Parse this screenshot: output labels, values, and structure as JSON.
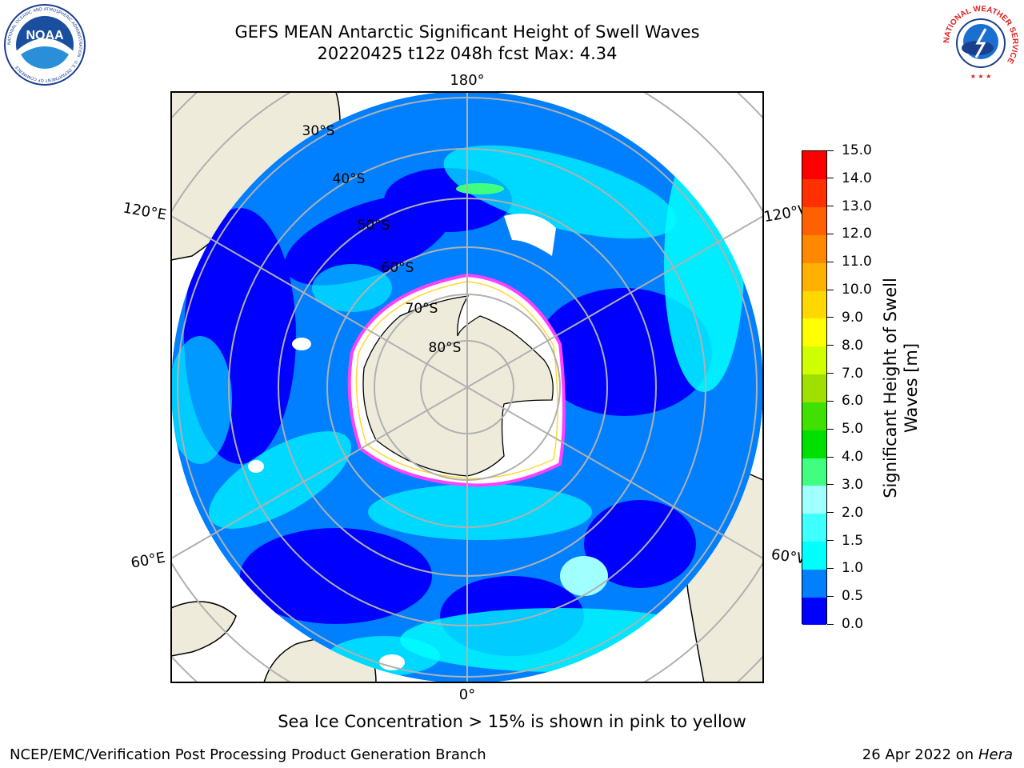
{
  "header": {
    "title_line1": "GEFS MEAN Antarctic Significant Height of Swell Waves",
    "title_line2": "20220425 t12z 048h fcst   Max: 4.34"
  },
  "logos": {
    "noaa": {
      "text": "NOAA",
      "ring_text": "NATIONAL OCEANIC AND ATMOSPHERIC ADMINISTRATION · U.S. DEPARTMENT OF COMMERCE"
    },
    "nws": {
      "ring_text": "NATIONAL WEATHER SERVICE"
    }
  },
  "map": {
    "projection": "south-polar stereographic",
    "longitude_labels": {
      "top": "180°",
      "bottom": "0°",
      "upper_left": "120°E",
      "upper_right": "120°W",
      "lower_left": "60°E",
      "lower_right": "60°W"
    },
    "latitude_labels": [
      "30°S",
      "40°S",
      "50°S",
      "60°S",
      "70°S",
      "80°S"
    ],
    "gridline_color": "#b0b0b0",
    "land_color": "#efebdb",
    "sea_ice_color": "#ffffff"
  },
  "colorbar": {
    "label": "Significant Height of Swell Waves [m]",
    "label_line1": "Significant Height of Swell",
    "label_line2": "Waves [m]",
    "levels": [
      "0.0",
      "0.5",
      "1.0",
      "1.5",
      "2.0",
      "3.0",
      "4.0",
      "5.0",
      "6.0",
      "7.0",
      "8.0",
      "9.0",
      "10.0",
      "11.0",
      "12.0",
      "13.0",
      "14.0",
      "15.0"
    ],
    "colors": [
      "#0000ff",
      "#0080ff",
      "#00ffff",
      "#40ffff",
      "#a0ffff",
      "#40ff80",
      "#00e000",
      "#40e000",
      "#a0e000",
      "#d0ff00",
      "#ffff00",
      "#ffd800",
      "#ffb000",
      "#ff8800",
      "#ff6000",
      "#ff3000",
      "#ff0000"
    ]
  },
  "note": "Sea Ice Concentration > 15% is shown in pink to yellow",
  "footer": {
    "left": "NCEP/EMC/Verification Post Processing Product Generation Branch",
    "right_prefix": "26 Apr 2022 on ",
    "right_machine": "Hera"
  }
}
